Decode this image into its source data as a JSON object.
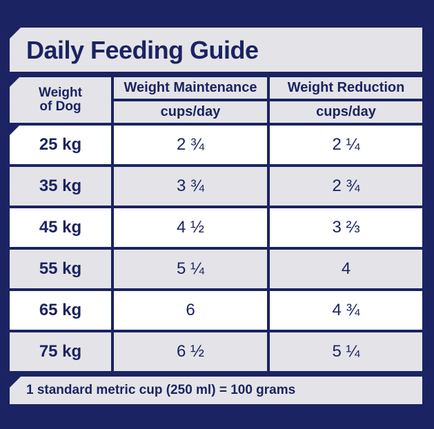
{
  "title": "Daily Feeding Guide",
  "headers": {
    "weight_line1": "Weight",
    "weight_line2": "of Dog",
    "col1": "Weight Maintenance",
    "col2": "Weight Reduction",
    "unit1": "cups/day",
    "unit2": "cups/day"
  },
  "rows": [
    {
      "weight": "25 kg",
      "maintenance": "2 ¾",
      "reduction": "2 ¼"
    },
    {
      "weight": "35 kg",
      "maintenance": "3 ¾",
      "reduction": "2 ¾"
    },
    {
      "weight": "45 kg",
      "maintenance": "4 ½",
      "reduction": "3 ⅔"
    },
    {
      "weight": "55 kg",
      "maintenance": "5 ¼",
      "reduction": "4"
    },
    {
      "weight": "65 kg",
      "maintenance": "6",
      "reduction": "4 ¾"
    },
    {
      "weight": "75 kg",
      "maintenance": "6 ½",
      "reduction": "5 ¼"
    }
  ],
  "footer": "1 standard metric cup (250 ml) = 100 grams",
  "colors": {
    "navy": "#1b2362",
    "light_grey": "#e4e4e8",
    "white": "#ffffff"
  }
}
